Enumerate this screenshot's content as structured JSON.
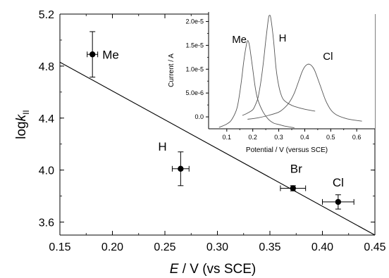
{
  "chart_data": [
    {
      "type": "scatter",
      "xlabel": {
        "main": "E",
        "rest": " / V (vs SCE)"
      },
      "ylabel": {
        "prefix": "log",
        "k": "k",
        "sub": "II"
      },
      "xlim": [
        0.15,
        0.45
      ],
      "ylim": [
        3.5,
        5.2
      ],
      "xticks": [
        0.15,
        0.2,
        0.25,
        0.3,
        0.35,
        0.4,
        0.45
      ],
      "xtick_labels": [
        "0.15",
        "0.20",
        "0.25",
        "0.30",
        "0.35",
        "0.40",
        "0.45"
      ],
      "yticks": [
        3.6,
        4.0,
        4.4,
        4.8,
        5.2
      ],
      "ytick_labels": [
        "3.6",
        "4.0",
        "4.4",
        "4.8",
        "5.2"
      ],
      "grid": false,
      "points": [
        {
          "label": "Me",
          "x": 0.181,
          "y": 4.89,
          "xerr": 0.005,
          "yerr": 0.175
        },
        {
          "label": "H",
          "x": 0.265,
          "y": 4.01,
          "xerr": 0.008,
          "yerr": 0.13
        },
        {
          "label": "Br",
          "x": 0.372,
          "y": 3.86,
          "xerr": 0.012,
          "yerr": 0.02
        },
        {
          "label": "Cl",
          "x": 0.415,
          "y": 3.755,
          "xerr": 0.015,
          "yerr": 0.055
        }
      ],
      "fit_line": {
        "x": [
          0.15,
          0.45
        ],
        "y": [
          4.83,
          3.5
        ]
      }
    },
    {
      "type": "line",
      "inset": true,
      "xlabel": "Potential / V (versus SCE)",
      "ylabel": "Current / A",
      "xlim": [
        0.03,
        0.67
      ],
      "ylim": [
        -2.5e-06,
        2.2e-05
      ],
      "xticks": [
        0.1,
        0.2,
        0.3,
        0.4,
        0.5,
        0.6
      ],
      "xtick_labels": [
        "0.1",
        "0.2",
        "0.3",
        "0.4",
        "0.5",
        "0.6"
      ],
      "yticks": [
        0,
        5e-06,
        1e-05,
        1.5e-05,
        2e-05
      ],
      "ytick_labels": [
        "0.0",
        "5.0e-6",
        "1.0e-5",
        "1.5e-5",
        "2.0e-5"
      ],
      "series": [
        {
          "name": "Me",
          "x": [
            0.07,
            0.1,
            0.12,
            0.14,
            0.155,
            0.165,
            0.175,
            0.18,
            0.185,
            0.19,
            0.2,
            0.21,
            0.22,
            0.24,
            0.26,
            0.28,
            0.3,
            0.32,
            0.34,
            0.36
          ],
          "y": [
            -2.2e-06,
            -1.5e-06,
            -5e-07,
            2e-06,
            7e-06,
            1.15e-05,
            1.5e-05,
            1.6e-05,
            1.55e-05,
            1.4e-05,
            1e-05,
            6e-06,
            3.5e-06,
            1e-06,
            -5e-07,
            -1.3e-06,
            -1.6e-06,
            -1.9e-06,
            -2.1e-06,
            -2.3e-06
          ]
        },
        {
          "name": "H",
          "x": [
            0.16,
            0.18,
            0.2,
            0.21,
            0.22,
            0.23,
            0.24,
            0.25,
            0.26,
            0.265,
            0.27,
            0.28,
            0.29,
            0.3,
            0.31,
            0.32,
            0.34,
            0.36,
            0.4,
            0.44
          ],
          "y": [
            3e-07,
            8e-07,
            1.5e-06,
            2.5e-06,
            4e-06,
            7e-06,
            1.1e-05,
            1.6e-05,
            2.05e-05,
            2.13e-05,
            2.05e-05,
            1.6e-05,
            1e-05,
            6.5e-06,
            4.5e-06,
            3.5e-06,
            2.7e-06,
            2.2e-06,
            1.6e-06,
            1.2e-06
          ]
        },
        {
          "name": "Cl",
          "x": [
            0.18,
            0.22,
            0.26,
            0.3,
            0.32,
            0.34,
            0.36,
            0.38,
            0.39,
            0.4,
            0.41,
            0.42,
            0.43,
            0.44,
            0.46,
            0.48,
            0.5,
            0.52,
            0.55,
            0.58,
            0.62
          ],
          "y": [
            -5e-07,
            -2e-07,
            3e-07,
            1e-06,
            1.8e-06,
            3e-06,
            5e-06,
            8e-06,
            9.5e-06,
            1.05e-05,
            1.1e-05,
            1.1e-05,
            1.05e-05,
            9.5e-06,
            6.5e-06,
            3.5e-06,
            1.5e-06,
            5e-07,
            -2e-07,
            -6e-07,
            -9e-07
          ]
        }
      ]
    }
  ]
}
